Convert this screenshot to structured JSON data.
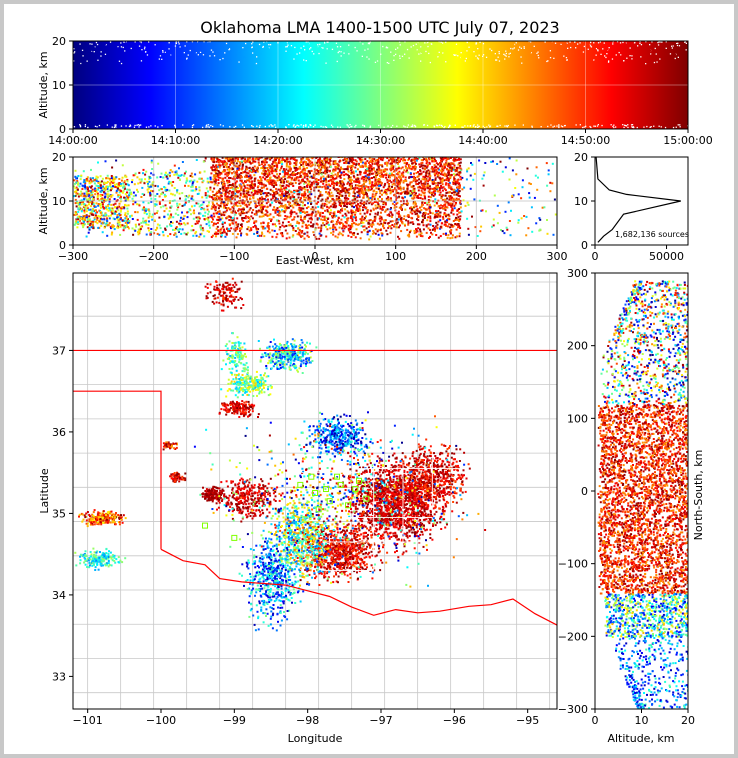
{
  "title": "Oklahoma LMA 1400-1500 UTC July 07, 2023",
  "colors": {
    "jet": [
      "#00007f",
      "#0000ff",
      "#0080ff",
      "#00ffff",
      "#7fff7f",
      "#ffff00",
      "#ff8000",
      "#ff0000",
      "#7f0000"
    ],
    "state_border": "#ff0000",
    "county_lines": "#c8c8c8",
    "network_stations": "#7fff00"
  },
  "chart_data": [
    {
      "id": "time_height",
      "type": "scatter",
      "title": "",
      "xlabel": "",
      "ylabel": "Altitude, km",
      "xlim": [
        "14:00:00",
        "15:00:00"
      ],
      "ylim": [
        0,
        20
      ],
      "xticks": [
        "14:00:00",
        "14:10:00",
        "14:20:00",
        "14:30:00",
        "14:40:00",
        "14:50:00",
        "15:00:00"
      ],
      "yticks": [
        "0",
        "10",
        "20"
      ],
      "color_by": "time",
      "grid": true
    },
    {
      "id": "east_west_height",
      "type": "scatter",
      "xlabel": "East-West, km",
      "ylabel": "Altitude, km",
      "xlim": [
        -300,
        300
      ],
      "ylim": [
        0,
        20
      ],
      "xticks": [
        "−300",
        "−200",
        "−100",
        "0",
        "100",
        "200",
        "300"
      ],
      "yticks": [
        "0",
        "10",
        "20"
      ],
      "grid": true
    },
    {
      "id": "altitude_histogram",
      "type": "line",
      "xlim": [
        0,
        65000
      ],
      "ylim": [
        0,
        20
      ],
      "xticks": [
        "0",
        "50000"
      ],
      "yticks": [
        "0",
        "10",
        "20"
      ],
      "annotation": "1,682,136 sources",
      "series": [
        {
          "x": [
            2000,
            6000,
            12000,
            20000,
            60000,
            22000,
            10000,
            2000,
            800
          ],
          "y": [
            0.6,
            2,
            3.5,
            7,
            10,
            11.5,
            12.5,
            15,
            20
          ]
        }
      ]
    },
    {
      "id": "plan_view",
      "type": "scatter",
      "xlabel": "Longitude",
      "ylabel": "Latitude",
      "xlim": [
        -101.2,
        -94.6
      ],
      "ylim": [
        32.6,
        37.95
      ],
      "xticks": [
        "−101",
        "−100",
        "−99",
        "−98",
        "−97",
        "−96",
        "−95"
      ],
      "yticks": [
        "33",
        "34",
        "35",
        "36",
        "37"
      ],
      "grid": false
    },
    {
      "id": "north_south_height",
      "type": "scatter",
      "xlabel": "Altitude, km",
      "ylabel": "North-South, km",
      "xlim": [
        0,
        20
      ],
      "ylim": [
        -300,
        300
      ],
      "xticks": [
        "0",
        "10",
        "20"
      ],
      "yticks": [
        "−300",
        "−200",
        "−100",
        "0",
        "100",
        "200",
        "300"
      ]
    }
  ]
}
